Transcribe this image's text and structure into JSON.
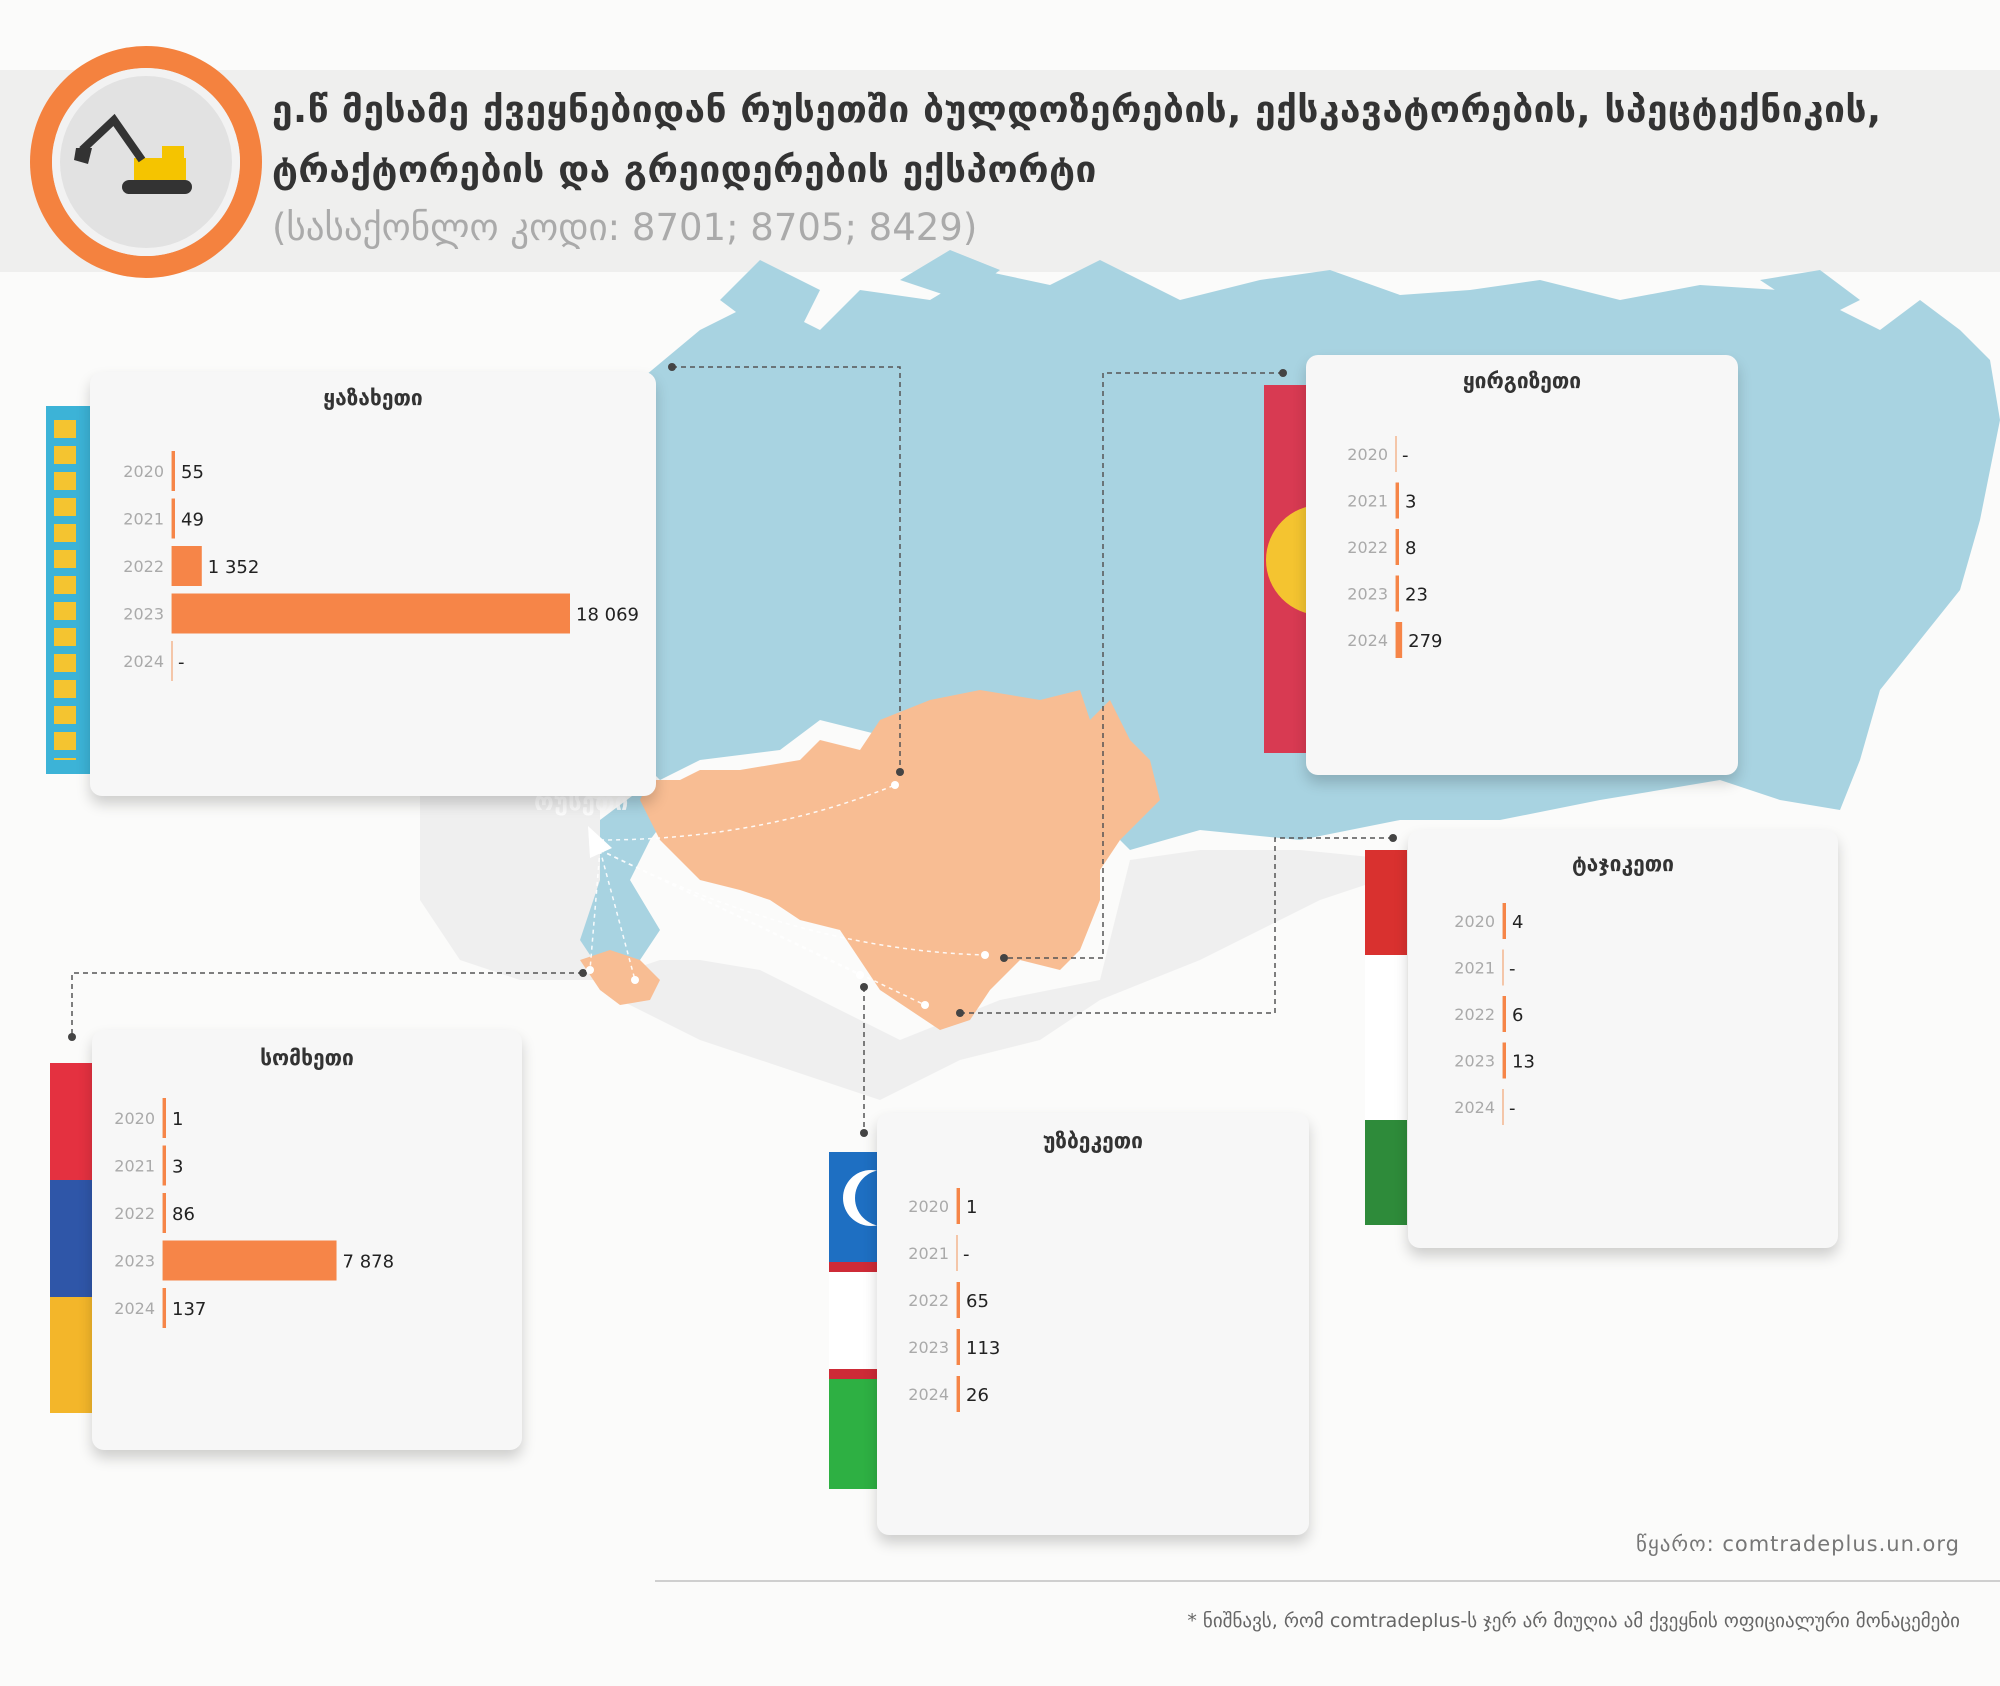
{
  "header": {
    "title_line1": "ე.წ მესამე ქვეყნებიდან რუსეთში ბულდოზერების, ექსკავატორების, სპეცტექნიკის,",
    "title_line2": "ტრაქტორების და გრეიდერების ექსპორტი",
    "subtitle": "(სასაქონლო კოდი: 8701; 8705; 8429)"
  },
  "map_label": "რუსეთი",
  "source": "წყარო: comtradeplus.un.org",
  "footnote": "* ნიშნავს, რომ comtradeplus-ს ჯერ არ მიუღია ამ ქვეყნის ოფიციალური მონაცემები",
  "colors": {
    "bar": "#f68548",
    "accent": "#f4823f",
    "sea": "#a8d3e1",
    "central_asia": "#f8bd93"
  },
  "chart_data": [
    {
      "type": "bar",
      "id": "kz",
      "title": "ყაზახეთი",
      "categories": [
        "2020",
        "2021",
        "2022",
        "2023",
        "2024"
      ],
      "values": [
        55,
        49,
        1352,
        18069,
        null
      ],
      "labels": [
        "55",
        "49",
        "1 352",
        "18 069",
        "-"
      ],
      "xlim": [
        0,
        18069
      ]
    },
    {
      "type": "bar",
      "id": "kg",
      "title": "ყირგიზეთი",
      "categories": [
        "2020",
        "2021",
        "2022",
        "2023",
        "2024"
      ],
      "values": [
        null,
        3,
        8,
        23,
        279
      ],
      "labels": [
        "-",
        "3",
        "8",
        "23",
        "279"
      ],
      "xlim": [
        0,
        18069
      ]
    },
    {
      "type": "bar",
      "id": "tj",
      "title": "ტაჯიკეთი",
      "categories": [
        "2020",
        "2021",
        "2022",
        "2023",
        "2024"
      ],
      "values": [
        4,
        null,
        6,
        13,
        null
      ],
      "labels": [
        "4",
        "-",
        "6",
        "13",
        "-"
      ],
      "xlim": [
        0,
        18069
      ]
    },
    {
      "type": "bar",
      "id": "am",
      "title": "სომხეთი",
      "categories": [
        "2020",
        "2021",
        "2022",
        "2023",
        "2024"
      ],
      "values": [
        1,
        3,
        86,
        7878,
        137
      ],
      "labels": [
        "1",
        "3",
        "86",
        "7 878",
        "137"
      ],
      "xlim": [
        0,
        18069
      ]
    },
    {
      "type": "bar",
      "id": "uz",
      "title": "უზბეკეთი",
      "categories": [
        "2020",
        "2021",
        "2022",
        "2023",
        "2024"
      ],
      "values": [
        1,
        null,
        65,
        113,
        26
      ],
      "labels": [
        "1",
        "-",
        "65",
        "113",
        "26"
      ],
      "xlim": [
        0,
        18069
      ]
    }
  ]
}
